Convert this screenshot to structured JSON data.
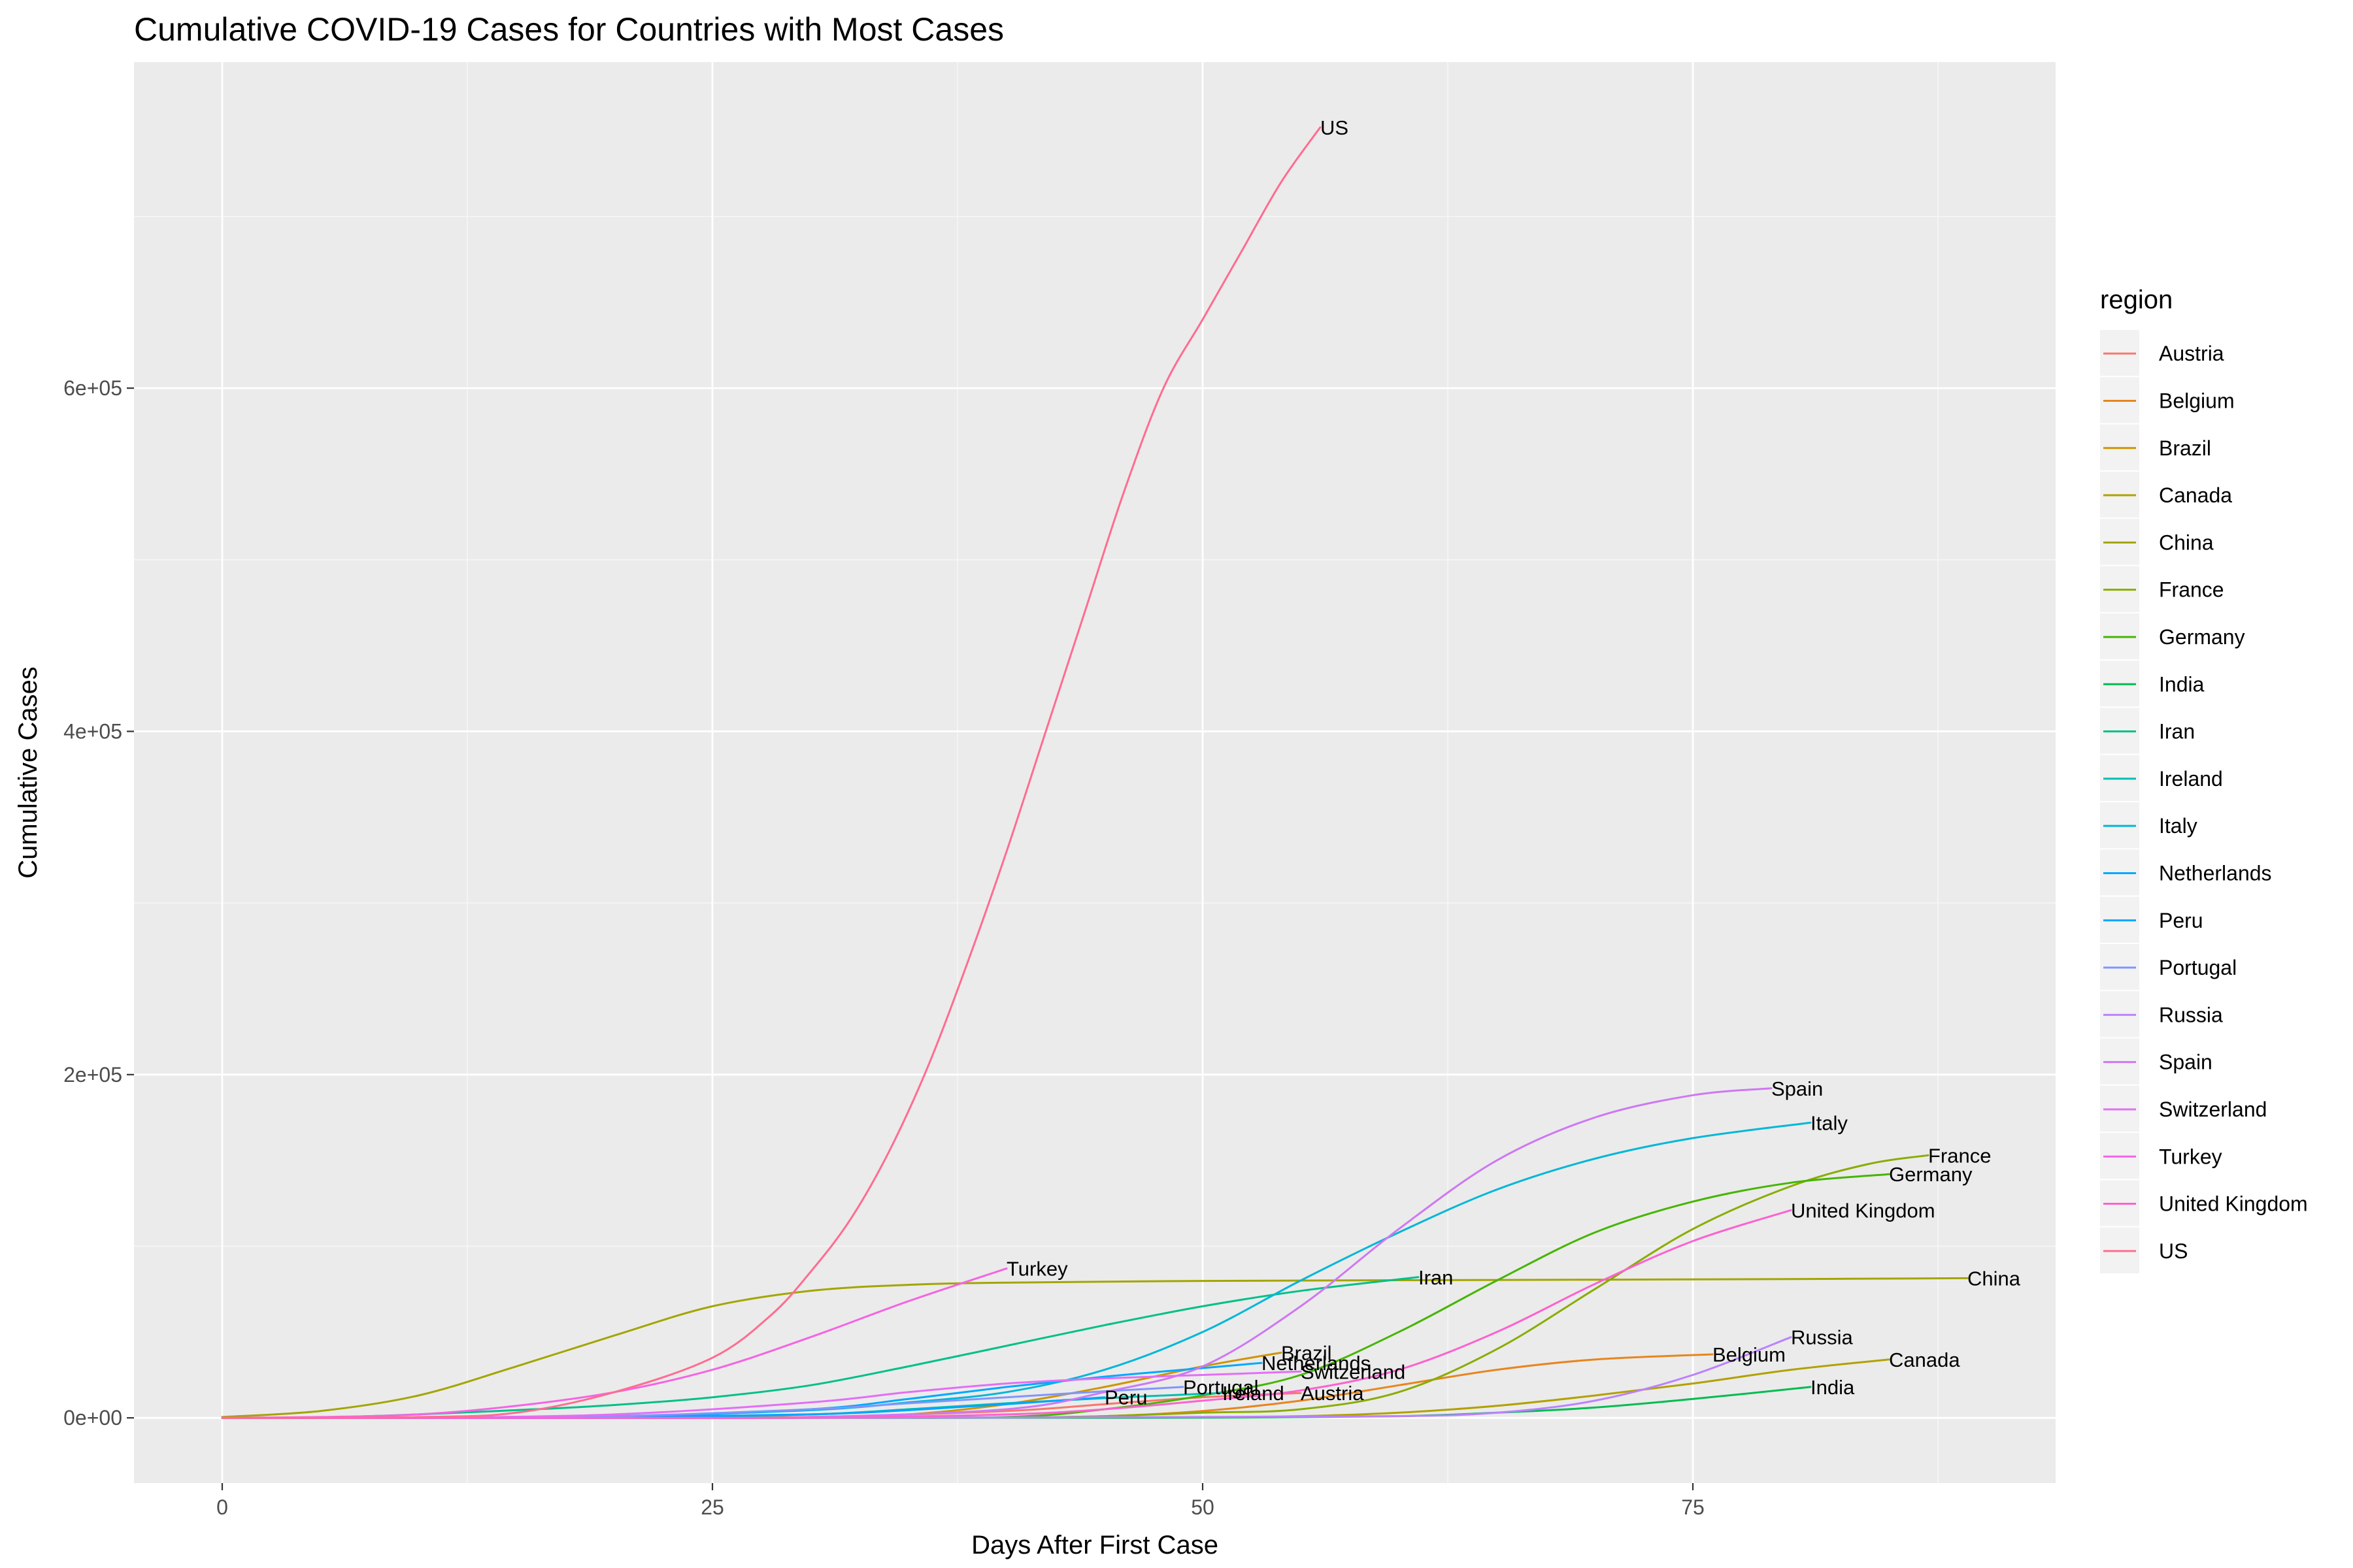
{
  "chart_data": {
    "type": "line",
    "title": "Cumulative COVID-19 Cases for Countries with Most Cases",
    "xlabel": "Days After First Case",
    "ylabel": "Cumulative Cases",
    "xlim": [
      -4.5,
      93.5
    ],
    "ylim": [
      -38000,
      790000
    ],
    "x_ticks": [
      0,
      25,
      50,
      75
    ],
    "x_tick_labels": [
      "0",
      "25",
      "50",
      "75"
    ],
    "y_ticks": [
      0,
      200000,
      400000,
      600000
    ],
    "y_tick_labels": [
      "0e+00",
      "2e+05",
      "4e+05",
      "6e+05"
    ],
    "grid": true,
    "legend": {
      "title": "region",
      "position": "right"
    },
    "series": [
      {
        "name": "Austria",
        "color": "#F8766D",
        "end_label": "Austria",
        "x": [
          0,
          10,
          20,
          30,
          40,
          45,
          50,
          55
        ],
        "y": [
          0,
          10,
          50,
          500,
          4000,
          8000,
          12000,
          14500
        ]
      },
      {
        "name": "Belgium",
        "color": "#E7851E",
        "end_label": "Belgium",
        "x": [
          0,
          20,
          30,
          40,
          45,
          50,
          55,
          60,
          65,
          70,
          76
        ],
        "y": [
          0,
          10,
          50,
          200,
          1000,
          4000,
          10000,
          19000,
          28000,
          34000,
          37000
        ]
      },
      {
        "name": "Brazil",
        "color": "#D09400",
        "end_label": "Brazil",
        "x": [
          0,
          10,
          20,
          30,
          35,
          40,
          45,
          50,
          54
        ],
        "y": [
          0,
          10,
          50,
          500,
          2000,
          8000,
          18000,
          30000,
          38000
        ]
      },
      {
        "name": "Canada",
        "color": "#B2A100",
        "end_label": "Canada",
        "x": [
          0,
          20,
          40,
          50,
          55,
          60,
          65,
          70,
          75,
          80,
          85
        ],
        "y": [
          0,
          10,
          50,
          500,
          1000,
          3000,
          7000,
          13000,
          20000,
          28000,
          34000
        ]
      },
      {
        "name": "China",
        "color": "#A3A500",
        "end_label": "China",
        "x": [
          0,
          5,
          10,
          15,
          20,
          25,
          30,
          35,
          40,
          50,
          60,
          70,
          80,
          89
        ],
        "y": [
          500,
          4000,
          13000,
          30000,
          48000,
          65000,
          74000,
          77500,
          78800,
          79800,
          80200,
          80500,
          80900,
          81400
        ]
      },
      {
        "name": "France",
        "color": "#89AC00",
        "end_label": "France",
        "x": [
          0,
          20,
          30,
          40,
          45,
          50,
          55,
          60,
          65,
          70,
          75,
          80,
          84,
          87
        ],
        "y": [
          0,
          10,
          50,
          100,
          1000,
          3000,
          5000,
          15000,
          40000,
          75000,
          110000,
          135000,
          148000,
          153000
        ]
      },
      {
        "name": "Germany",
        "color": "#45B500",
        "end_label": "Germany",
        "x": [
          0,
          20,
          30,
          40,
          45,
          50,
          55,
          60,
          65,
          70,
          75,
          80,
          85
        ],
        "y": [
          0,
          10,
          50,
          500,
          5000,
          13000,
          25000,
          50000,
          80000,
          108000,
          126000,
          137000,
          142000
        ]
      },
      {
        "name": "India",
        "color": "#00BC51",
        "end_label": "India",
        "x": [
          0,
          30,
          40,
          50,
          60,
          65,
          70,
          75,
          81
        ],
        "y": [
          0,
          10,
          50,
          100,
          1000,
          3000,
          6000,
          11000,
          18000
        ]
      },
      {
        "name": "Iran",
        "color": "#00C087",
        "end_label": "Iran",
        "x": [
          0,
          5,
          10,
          15,
          20,
          25,
          30,
          35,
          40,
          45,
          50,
          55,
          61
        ],
        "y": [
          0,
          200,
          2000,
          4500,
          7500,
          12000,
          19000,
          30000,
          42000,
          54000,
          65000,
          74000,
          82000
        ]
      },
      {
        "name": "Ireland",
        "color": "#00BDB2",
        "end_label": "Ireland",
        "x": [
          0,
          10,
          20,
          30,
          35,
          40,
          45,
          50,
          51
        ],
        "y": [
          0,
          10,
          100,
          2000,
          5000,
          8500,
          11500,
          14000,
          14500
        ]
      },
      {
        "name": "Italy",
        "color": "#00B7D8",
        "end_label": "Italy",
        "x": [
          0,
          10,
          20,
          30,
          35,
          40,
          45,
          50,
          55,
          60,
          65,
          70,
          75,
          81
        ],
        "y": [
          0,
          200,
          1000,
          4500,
          9000,
          15000,
          28000,
          50000,
          80000,
          108000,
          133000,
          151000,
          163000,
          172000
        ]
      },
      {
        "name": "Netherlands",
        "color": "#00A9FF",
        "end_label": "Netherlands",
        "x": [
          0,
          10,
          20,
          30,
          35,
          40,
          45,
          50,
          53
        ],
        "y": [
          0,
          100,
          500,
          5000,
          11000,
          18000,
          24000,
          29000,
          32000
        ]
      },
      {
        "name": "Peru",
        "color": "#00A5FF",
        "end_label": "Peru",
        "x": [
          0,
          10,
          20,
          30,
          35,
          40,
          45
        ],
        "y": [
          0,
          100,
          500,
          2000,
          4500,
          8000,
          12000
        ]
      },
      {
        "name": "Portugal",
        "color": "#7F96FF",
        "end_label": "Portugal",
        "x": [
          0,
          10,
          20,
          30,
          35,
          40,
          45,
          49
        ],
        "y": [
          0,
          100,
          1000,
          5000,
          8500,
          12000,
          15500,
          18000
        ]
      },
      {
        "name": "Russia",
        "color": "#BC81FF",
        "end_label": "Russia",
        "x": [
          0,
          30,
          50,
          60,
          65,
          70,
          75,
          80
        ],
        "y": [
          0,
          10,
          500,
          1000,
          3000,
          10000,
          25000,
          47000
        ]
      },
      {
        "name": "Spain",
        "color": "#CE78F3",
        "end_label": "Spain",
        "x": [
          0,
          20,
          30,
          40,
          45,
          50,
          55,
          60,
          65,
          70,
          75,
          79
        ],
        "y": [
          0,
          10,
          500,
          5000,
          15000,
          30000,
          65000,
          110000,
          150000,
          175000,
          188000,
          192000
        ]
      },
      {
        "name": "Switzerland",
        "color": "#E36EF6",
        "end_label": "Switzerland",
        "x": [
          0,
          10,
          20,
          30,
          35,
          40,
          45,
          50,
          55
        ],
        "y": [
          0,
          100,
          2000,
          9000,
          15000,
          20000,
          23000,
          25000,
          27000
        ]
      },
      {
        "name": "Turkey",
        "color": "#F564E3",
        "end_label": "Turkey",
        "x": [
          0,
          5,
          10,
          15,
          20,
          25,
          30,
          35,
          40
        ],
        "y": [
          0,
          500,
          2000,
          7000,
          15000,
          28000,
          47000,
          68000,
          87000
        ]
      },
      {
        "name": "United Kingdom",
        "color": "#FC62CF",
        "end_label": "United Kingdom",
        "x": [
          0,
          20,
          30,
          40,
          45,
          50,
          55,
          60,
          65,
          70,
          75,
          80
        ],
        "y": [
          0,
          10,
          100,
          2000,
          5000,
          10000,
          16000,
          28000,
          50000,
          78000,
          103000,
          121000
        ]
      },
      {
        "name": "US",
        "color": "#FF6C91",
        "end_label": "US",
        "x": [
          0,
          10,
          15,
          20,
          25,
          28,
          30,
          32,
          34,
          36,
          38,
          40,
          42,
          44,
          46,
          48,
          50,
          52,
          54,
          56
        ],
        "y": [
          0,
          500,
          3000,
          15000,
          35000,
          60000,
          85000,
          115000,
          155000,
          205000,
          265000,
          330000,
          400000,
          470000,
          540000,
          600000,
          640000,
          680000,
          720000,
          752000
        ]
      }
    ]
  }
}
